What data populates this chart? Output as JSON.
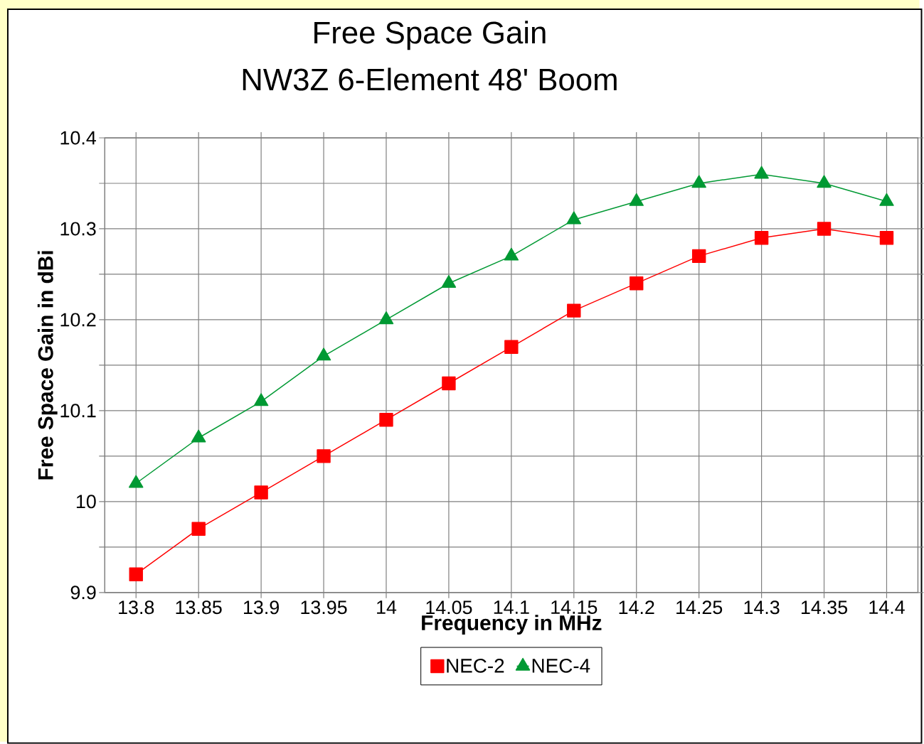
{
  "chart_data": {
    "type": "line",
    "title": "Free Space Gain",
    "subtitle": "NW3Z 6-Element 48' Boom",
    "xlabel": "Frequency in MHz",
    "ylabel": "Free Space Gain in dBi",
    "x": [
      13.8,
      13.85,
      13.9,
      13.95,
      14,
      14.05,
      14.1,
      14.15,
      14.2,
      14.25,
      14.3,
      14.35,
      14.4
    ],
    "series": [
      {
        "name": "NEC-2",
        "color": "#ff0000",
        "marker": "square",
        "values": [
          9.92,
          9.97,
          10.01,
          10.05,
          10.09,
          10.13,
          10.17,
          10.21,
          10.24,
          10.27,
          10.29,
          10.3,
          10.29
        ]
      },
      {
        "name": "NEC-4",
        "color": "#009933",
        "marker": "triangle",
        "values": [
          10.02,
          10.07,
          10.11,
          10.16,
          10.2,
          10.24,
          10.27,
          10.31,
          10.33,
          10.35,
          10.36,
          10.35,
          10.33
        ]
      }
    ],
    "xlim": [
      13.775,
      14.425
    ],
    "xticks": [
      13.8,
      13.85,
      13.9,
      13.95,
      14,
      14.05,
      14.1,
      14.15,
      14.2,
      14.25,
      14.3,
      14.35,
      14.4
    ],
    "ylim": [
      9.9,
      10.4
    ],
    "yticks": [
      9.9,
      {
        "value": 9.95,
        "label": null
      },
      10,
      {
        "value": 10.05,
        "label": null
      },
      10.1,
      {
        "value": 10.15,
        "label": null
      },
      10.2,
      {
        "value": 10.25,
        "label": null
      },
      10.3,
      {
        "value": 10.35,
        "label": null
      },
      10.4
    ],
    "grid": true,
    "legend": "bottom"
  }
}
